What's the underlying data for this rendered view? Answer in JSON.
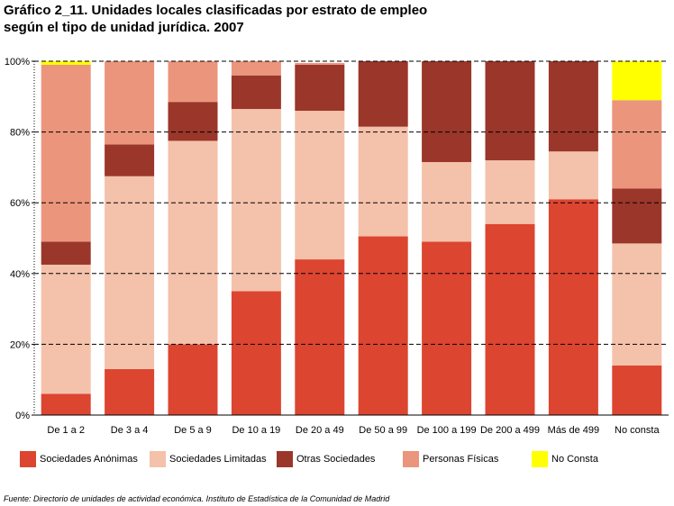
{
  "title_lines": [
    "Gráfico 2_11. Unidades locales clasificadas por estrato de empleo",
    "según el tipo de unidad jurídica. 2007"
  ],
  "source": "Fuente: Directorio de unidades de actividad económica. Instituto de Estadística de la Comunidad de Madrid",
  "chart_data": {
    "type": "bar",
    "stacked": true,
    "percent": true,
    "categories": [
      "De 1 a 2",
      "De 3 a 4",
      "De 5 a 9",
      "De 10 a 19",
      "De 20 a 49",
      "De 50 a 99",
      "De 100 a 199",
      "De 200 a 499",
      "Más de 499",
      "No consta"
    ],
    "y_ticks": [
      "0%",
      "20%",
      "40%",
      "60%",
      "80%",
      "100%"
    ],
    "ylim": [
      0,
      100
    ],
    "grid": true,
    "legend_position": "bottom",
    "series": [
      {
        "name": "Sociedades Anónimas",
        "color": "#dc4530",
        "values": [
          6,
          13,
          20,
          35,
          44,
          50.5,
          49,
          54,
          61,
          14
        ]
      },
      {
        "name": "Sociedades Limitadas",
        "color": "#f4c1ab",
        "values": [
          36.5,
          54.5,
          57.5,
          51.5,
          42,
          31,
          22.5,
          18,
          13.5,
          34.5
        ]
      },
      {
        "name": "Otras Sociedades",
        "color": "#9a362a",
        "values": [
          6.5,
          9,
          11,
          9.5,
          13,
          18.5,
          28.5,
          28,
          25.5,
          15.5
        ]
      },
      {
        "name": "Personas Físicas",
        "color": "#eb957c",
        "values": [
          50,
          23.5,
          11.5,
          4,
          0.5,
          0,
          0,
          0,
          0,
          25
        ]
      },
      {
        "name": "No Consta",
        "color": "#ffff00",
        "values": [
          1,
          0,
          0,
          0,
          0,
          0,
          0,
          0,
          0,
          11
        ]
      }
    ]
  }
}
